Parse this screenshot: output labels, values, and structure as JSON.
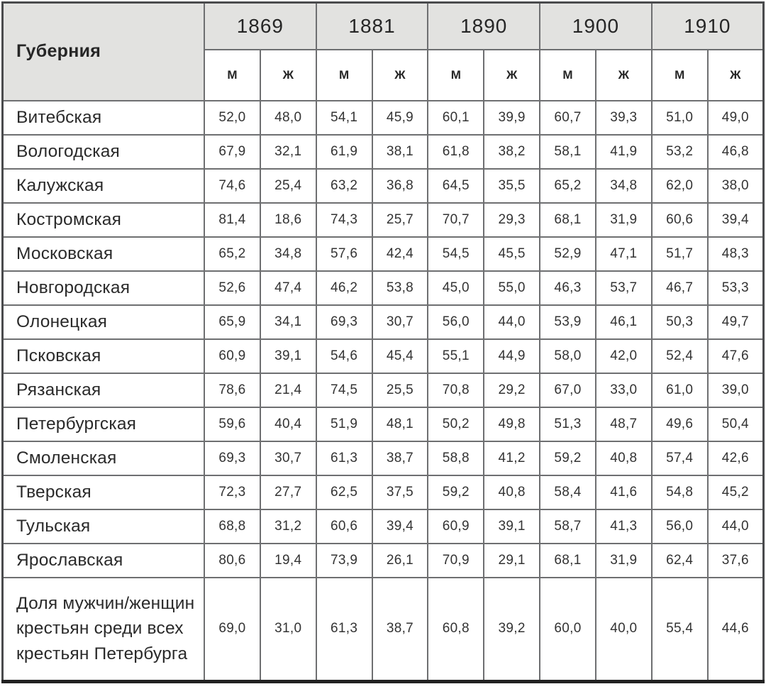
{
  "colors": {
    "header_bg": "#e2e2e0",
    "inner_border": "#6e6f71",
    "outer_border": "#4a4b4d",
    "bottom_border": "#222222",
    "text": "#262626"
  },
  "chart_data": {
    "type": "table",
    "row_header_label": "Губерния",
    "year_groups": [
      "1869",
      "1881",
      "1890",
      "1900",
      "1910"
    ],
    "subcolumns": [
      "М",
      "Ж"
    ],
    "rows": [
      {
        "label": "Витебская",
        "values": [
          "52,0",
          "48,0",
          "54,1",
          "45,9",
          "60,1",
          "39,9",
          "60,7",
          "39,3",
          "51,0",
          "49,0"
        ]
      },
      {
        "label": "Вологодская",
        "values": [
          "67,9",
          "32,1",
          "61,9",
          "38,1",
          "61,8",
          "38,2",
          "58,1",
          "41,9",
          "53,2",
          "46,8"
        ]
      },
      {
        "label": "Калужская",
        "values": [
          "74,6",
          "25,4",
          "63,2",
          "36,8",
          "64,5",
          "35,5",
          "65,2",
          "34,8",
          "62,0",
          "38,0"
        ]
      },
      {
        "label": "Костромская",
        "values": [
          "81,4",
          "18,6",
          "74,3",
          "25,7",
          "70,7",
          "29,3",
          "68,1",
          "31,9",
          "60,6",
          "39,4"
        ]
      },
      {
        "label": "Московская",
        "values": [
          "65,2",
          "34,8",
          "57,6",
          "42,4",
          "54,5",
          "45,5",
          "52,9",
          "47,1",
          "51,7",
          "48,3"
        ]
      },
      {
        "label": "Новгородская",
        "values": [
          "52,6",
          "47,4",
          "46,2",
          "53,8",
          "45,0",
          "55,0",
          "46,3",
          "53,7",
          "46,7",
          "53,3"
        ]
      },
      {
        "label": "Олонецкая",
        "values": [
          "65,9",
          "34,1",
          "69,3",
          "30,7",
          "56,0",
          "44,0",
          "53,9",
          "46,1",
          "50,3",
          "49,7"
        ]
      },
      {
        "label": "Псковская",
        "values": [
          "60,9",
          "39,1",
          "54,6",
          "45,4",
          "55,1",
          "44,9",
          "58,0",
          "42,0",
          "52,4",
          "47,6"
        ]
      },
      {
        "label": "Рязанская",
        "values": [
          "78,6",
          "21,4",
          "74,5",
          "25,5",
          "70,8",
          "29,2",
          "67,0",
          "33,0",
          "61,0",
          "39,0"
        ]
      },
      {
        "label": "Петербургская",
        "values": [
          "59,6",
          "40,4",
          "51,9",
          "48,1",
          "50,2",
          "49,8",
          "51,3",
          "48,7",
          "49,6",
          "50,4"
        ]
      },
      {
        "label": "Смоленская",
        "values": [
          "69,3",
          "30,7",
          "61,3",
          "38,7",
          "58,8",
          "41,2",
          "59,2",
          "40,8",
          "57,4",
          "42,6"
        ]
      },
      {
        "label": "Тверская",
        "values": [
          "72,3",
          "27,7",
          "62,5",
          "37,5",
          "59,2",
          "40,8",
          "58,4",
          "41,6",
          "54,8",
          "45,2"
        ]
      },
      {
        "label": "Тульская",
        "values": [
          "68,8",
          "31,2",
          "60,6",
          "39,4",
          "60,9",
          "39,1",
          "58,7",
          "41,3",
          "56,0",
          "44,0"
        ]
      },
      {
        "label": "Ярославская",
        "values": [
          "80,6",
          "19,4",
          "73,9",
          "26,1",
          "70,9",
          "29,1",
          "68,1",
          "31,9",
          "62,4",
          "37,6"
        ]
      },
      {
        "label": "Доля мужчин/женщин крестьян среди всех крестьян Петербурга",
        "values": [
          "69,0",
          "31,0",
          "61,3",
          "38,7",
          "60,8",
          "39,2",
          "60,0",
          "40,0",
          "55,4",
          "44,6"
        ]
      }
    ]
  }
}
